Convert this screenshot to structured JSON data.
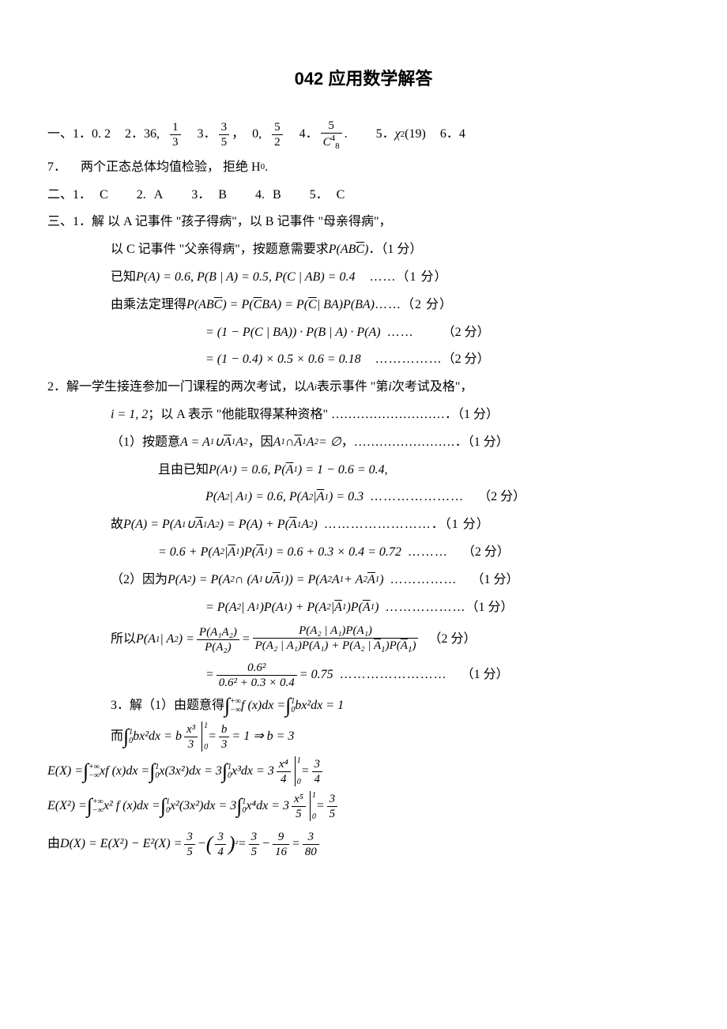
{
  "title": "042 应用数学解答",
  "sec1": {
    "label": "一、",
    "q1_label": "1．",
    "q1_val": "0. 2",
    "q2_label": "2．",
    "q2_val": "36,",
    "q2_frac_n": "1",
    "q2_frac_d": "3",
    "q3_label": "3．",
    "q3_frac1_n": "3",
    "q3_frac1_d": "5",
    "q3_comma": "，",
    "q3_zero": "0,",
    "q3_frac2_n": "5",
    "q3_frac2_d": "2",
    "q4_label": "4．",
    "q4_frac_n": "5",
    "q4_frac_d_base": "C",
    "q4_frac_d_sub": "8",
    "q4_frac_d_sup": "4",
    "q4_dot": ".",
    "q5_label": "5．",
    "q5_chi": "χ",
    "q5_sup": "2",
    "q5_arg": "(19)",
    "q6_label": "6．",
    "q6_val": "4",
    "q7_label": "7．",
    "q7_text": "两个正态总体均值检验，  拒绝 H",
    "q7_sub": "0",
    "q7_dot": "."
  },
  "sec2": {
    "label": "二、",
    "a1_l": "1．",
    "a1": "C",
    "a2_l": "2.",
    "a2": "A",
    "a3_l": "3．",
    "a3": "B",
    "a4_l": "4.",
    "a4": "B",
    "a5_l": "5．",
    "a5": "C"
  },
  "sec3": {
    "label": "三、",
    "p1": {
      "label": "1．",
      "l1": "解  以 A 记事件 \"孩子得病\"，以 B 记事件 \"母亲得病\"，",
      "l2a": "以 C 记事件 \"父亲得病\"，按题意需要求",
      "l2b_P": "P",
      "l2b_arg_open": "(",
      "l2b_AB": "AB",
      "l2b_Cbar": "C",
      "l2b_arg_close": ")",
      "l2c": "．（1 分）",
      "l3a": "已知 ",
      "l3b": "P(A) = 0.6, P(B | A) = 0.5, P(C | AB) = 0.4",
      "l3c": "……（1 分）",
      "l4a": "由乘法定理得 ",
      "l4b_p": "P(AB",
      "l4b_c": "C",
      "l4b_e": ") = P(",
      "l4b_c2": "C",
      "l4b_m": "BA) = P(",
      "l4b_c3": "C",
      "l4b_e2": " | BA)P(BA)",
      "l4c": "……（2 分）",
      "l5a": "= (1 − P(C | BA)) · P(B | A) · P(A)",
      "l5b": "……",
      "l5c": "（2 分）",
      "l6a": "= (1 − 0.4) × 0.5 × 0.6 = 0.18",
      "l6b": "……………",
      "l6c": "（2 分）"
    },
    "p2": {
      "label": "2．",
      "l1a": "解一学生接连参加一门课程的两次考试，以",
      "l1b_A": "A",
      "l1b_i": "i",
      "l1c": "表示事件 \"第 ",
      "l1d": "i",
      "l1e": " 次考试及格\"，",
      "l2a": "i = 1, 2",
      "l2b": "；以 A 表示 \"他能取得某种资格\" ………………………．（1 分）",
      "l3a": "（1）按题意 ",
      "l3b_A": "A = A",
      "l3b_1": "1",
      "l3b_cup": " ∪ ",
      "l3b_A1bar": "A",
      "l3b_A1bar_s": "1",
      "l3b_A2": "A",
      "l3b_2": "2",
      "l3c": "，因 ",
      "l3d_A": "A",
      "l3d_1": "1",
      "l3d_cap": " ∩ ",
      "l3d_A1bar": "A",
      "l3d_A1bar_s": "1",
      "l3d_A2": "A",
      "l3d_2": "2",
      "l3d_eq": " = ∅",
      "l3e": "，……………………．（1 分）",
      "l4a": "且由已知  ",
      "l4b": "P(A",
      "l4b_1": "1",
      "l4c": ") = 0.6, P(",
      "l4d_bar": "A",
      "l4d_1": "1",
      "l4e": ") = 1 − 0.6 = 0.4,",
      "l5a": "P(A",
      "l5a_2": "2",
      "l5b": " | A",
      "l5b_1": "1",
      "l5c": ") = 0.6, P(A",
      "l5c_2": "2",
      "l5d": " | ",
      "l5e_bar": "A",
      "l5e_1": "1",
      "l5f": ") = 0.3",
      "l5g": "…………………",
      "l5h": "（2 分）",
      "l6a": "故",
      "l6b": "P(A) = P(A",
      "l6b_1": "1",
      "l6c": " ∪ ",
      "l6d_bar": "A",
      "l6d_1": "1",
      "l6e": "A",
      "l6e_2": "2",
      "l6f": ") = P(A) + P(",
      "l6g_bar": "A",
      "l6g_1": "1",
      "l6h": "A",
      "l6h_2": "2",
      "l6i": ")",
      "l6j": "……………………．（1 分）",
      "l7a": "= 0.6 + P(A",
      "l7a_2": "2",
      "l7b": " | ",
      "l7c_bar": "A",
      "l7c_1": "1",
      "l7d": ")P(",
      "l7e_bar": "A",
      "l7e_1": "1",
      "l7f": ") = 0.6 + 0.3 × 0.4 = 0.72",
      "l7g": "………",
      "l7h": "（2 分）",
      "l8a": "（2）因为",
      "l8b": "P(A",
      "l8b_2": "2",
      "l8c": ") = P(A",
      "l8c_2": "2",
      "l8d": " ∩ (A",
      "l8d_1": "1",
      "l8e": " ∪ ",
      "l8f_bar": "A",
      "l8f_1": "1",
      "l8g": ")) = P(A",
      "l8g_2": "2",
      "l8h": "A",
      "l8h_1": "1",
      "l8i": " + A",
      "l8i_2": "2",
      "l8j_bar": "A",
      "l8j_1": "1",
      "l8k": ")",
      "l8l": "……………",
      "l8m": "（1 分）",
      "l9a": "= P(A",
      "l9a_2": "2",
      "l9b": " | A",
      "l9b_1": "1",
      "l9c": ")P(A",
      "l9c_1": "1",
      "l9d": ") + P(A",
      "l9d_2": "2",
      "l9e": " | ",
      "l9f_bar": "A",
      "l9f_1": "1",
      "l9g": ")P(",
      "l9h_bar": "A",
      "l9h_1": "1",
      "l9i": ")",
      "l9j": "………………",
      "l9k": "（1 分）",
      "l10a": "所以",
      "l10b": "P(A",
      "l10b_1": "1",
      "l10c": " | A",
      "l10c_2": "2",
      "l10d": ") =",
      "l10_f1_n": "P(A₁A₂)",
      "l10_f1_d": "P(A₂)",
      "l10_eq": " = ",
      "l10_f2_n": "P(A₂ | A₁)P(A₁)",
      "l10_f2_d_a": "P(A₂ | A₁)P(A₁) + P(A₂ | ",
      "l10_f2_d_bar": "A",
      "l10_f2_d_1": "1",
      "l10_f2_d_b": ")P(",
      "l10_f2_d_bar2": "A",
      "l10_f2_d_1b": "1",
      "l10_f2_d_c": ")",
      "l10e": "（2 分）",
      "l11_eq": "= ",
      "l11_f_n": "0.6²",
      "l11_f_d": "0.6² + 0.3 × 0.4",
      "l11_r": " = 0.75",
      "l11_g": "……………………",
      "l11_h": "（1 分）"
    },
    "p3": {
      "label": "3．",
      "l1a": "解（1）由题意得",
      "l1_int1_l": "−∞",
      "l1_int1_u": "+∞",
      "l1_int1_f": "f (x)dx = ",
      "l1_int2_l": "0",
      "l1_int2_u": "1",
      "l1_int2_f": "bx²dx = 1",
      "l2a": "而",
      "l2_int_l": "0",
      "l2_int_u": "1",
      "l2_int_f": "bx²dx = b",
      "l2_frac_n": "x³",
      "l2_frac_d": "3",
      "l2_bar_u": "1",
      "l2_bar_l": "0",
      "l2_eq": " = ",
      "l2_frac2_n": "b",
      "l2_frac2_d": "3",
      "l2_r": " = 1 ⇒ b = 3",
      "l3a": "E(X) = ",
      "l3_int1_l": "−∞",
      "l3_int1_u": "+∞",
      "l3_int1_f": "xf (x)dx = ",
      "l3_int2_l": "0",
      "l3_int2_u": "1",
      "l3_int2_f": "x(3x²)dx = 3",
      "l3_int3_l": "0",
      "l3_int3_u": "1",
      "l3_int3_f": "x³dx = 3",
      "l3_frac_n": "x⁴",
      "l3_frac_d": "4",
      "l3_bar_u": "1",
      "l3_bar_l": "0",
      "l3_eq": " = ",
      "l3_frac2_n": "3",
      "l3_frac2_d": "4",
      "l4a": "E(X²) = ",
      "l4_int1_l": "−∞",
      "l4_int1_u": "+∞",
      "l4_int1_f": "x² f (x)dx = ",
      "l4_int2_l": "0",
      "l4_int2_u": "1",
      "l4_int2_f": "x²(3x²)dx = 3",
      "l4_int3_l": "0",
      "l4_int3_u": "1",
      "l4_int3_f": "x⁴dx = 3",
      "l4_frac_n": "x⁵",
      "l4_frac_d": "5",
      "l4_bar_u": "1",
      "l4_bar_l": "0",
      "l4_eq": " = ",
      "l4_frac2_n": "3",
      "l4_frac2_d": "5",
      "l5a": "由",
      "l5b": "D(X) = E(X²) − E²(X) = ",
      "l5_f1_n": "3",
      "l5_f1_d": "5",
      "l5_m": " − ",
      "l5_po": "(",
      "l5_f2_n": "3",
      "l5_f2_d": "4",
      "l5_pc": ")",
      "l5_sq": "²",
      "l5_eq": " = ",
      "l5_f3_n": "3",
      "l5_f3_d": "5",
      "l5_m2": " − ",
      "l5_f4_n": "9",
      "l5_f4_d": "16",
      "l5_eq2": " = ",
      "l5_f5_n": "3",
      "l5_f5_d": "80"
    }
  }
}
